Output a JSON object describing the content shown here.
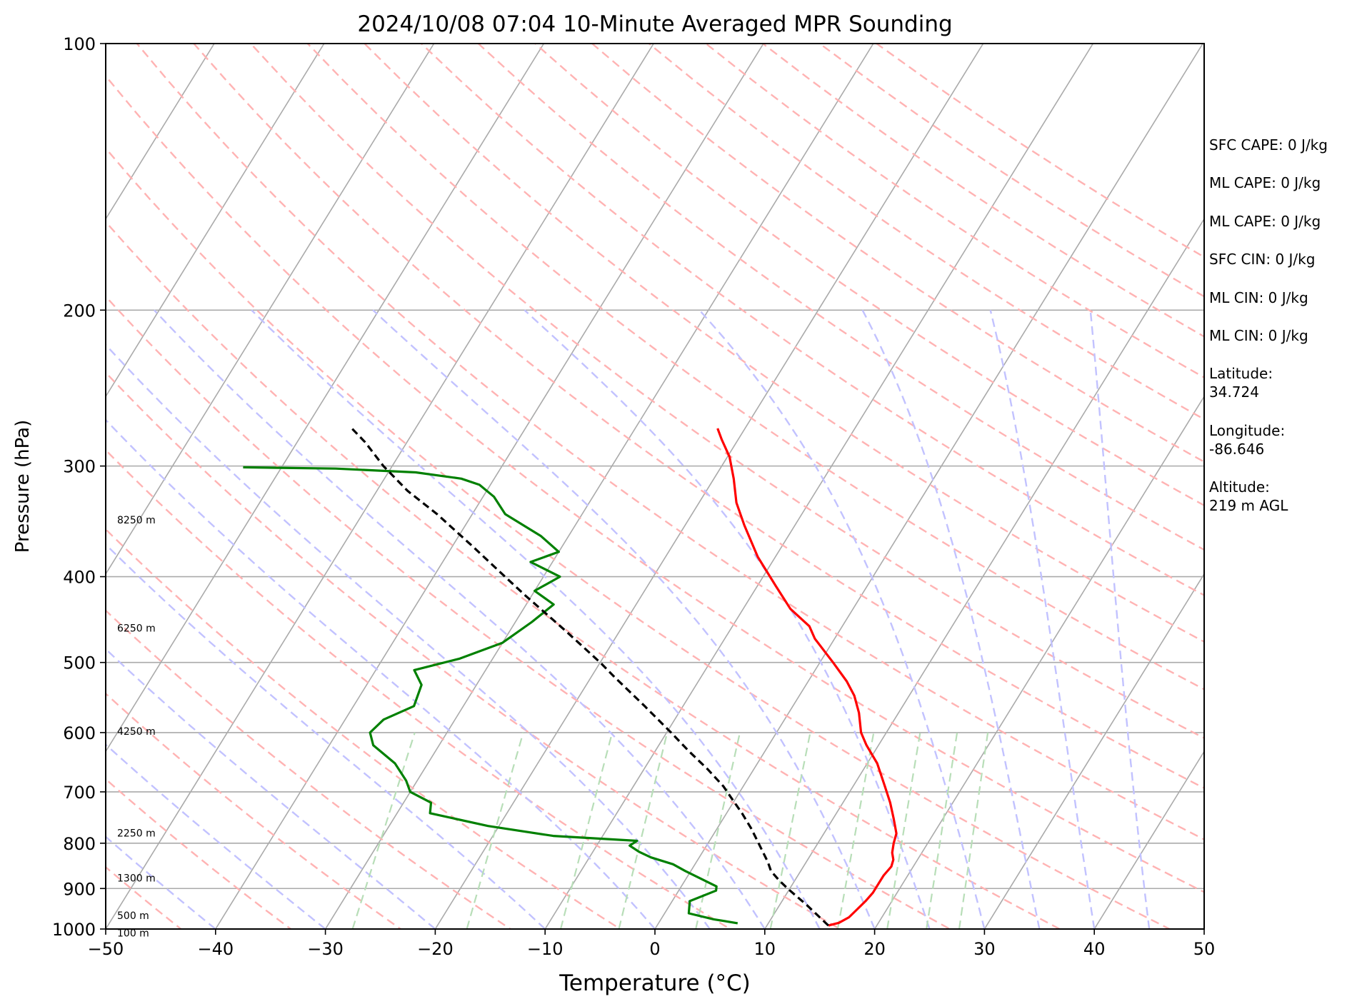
{
  "chart_data": {
    "type": "line",
    "subtype": "skew-t log-p",
    "title": "2024/10/08 07:04 10-Minute Averaged MPR Sounding",
    "xlabel": "Temperature (°C)",
    "ylabel": "Pressure (hPa)",
    "xlim": [
      -50,
      50
    ],
    "ylim": [
      1000,
      100
    ],
    "y_scale": "log",
    "x_ticks": [
      -50,
      -40,
      -30,
      -20,
      -10,
      0,
      10,
      20,
      30,
      40,
      50
    ],
    "x_tick_labels": [
      "−50",
      "−40",
      "−30",
      "−20",
      "−10",
      "0",
      "10",
      "20",
      "30",
      "40",
      "50"
    ],
    "y_ticks": [
      1000,
      900,
      800,
      700,
      600,
      500,
      400,
      300,
      200,
      100
    ],
    "y_tick_labels": [
      "1000",
      "900",
      "800",
      "700",
      "600",
      "500",
      "400",
      "300",
      "200",
      "100"
    ],
    "grid": true,
    "skew_isotherms_c": [
      -120,
      -110,
      -100,
      -90,
      -80,
      -70,
      -60,
      -50,
      -40,
      -30,
      -20,
      -10,
      0,
      10,
      20,
      30,
      40,
      50
    ],
    "dry_adiabats_theta_k": [
      210,
      220,
      230,
      240,
      250,
      260,
      270,
      280,
      290,
      300,
      310,
      320,
      330,
      340,
      350,
      360,
      370,
      380,
      390,
      400,
      410,
      420,
      430,
      440,
      450,
      460,
      470
    ],
    "moist_adiabats_start_c": [
      -40,
      -30,
      -20,
      -10,
      0,
      5,
      10,
      15,
      20,
      25,
      30,
      35,
      40,
      45
    ],
    "mixing_ratio_lines_gkg": [
      0.4,
      1,
      2,
      3,
      5,
      8,
      12,
      16,
      20,
      24
    ],
    "colors": {
      "temperature": "#ff0000",
      "dewpoint": "#008000",
      "parcel": "#000000",
      "isotherm": "#aaaaaa",
      "isobar": "#aaaaaa",
      "dry_adiabat": "#ffb3b3",
      "moist_adiabat": "#c2c2ff",
      "mixing_ratio": "#b8deb8"
    },
    "series": [
      {
        "role": "temperature",
        "points": [
          [
            991,
            15.6
          ],
          [
            984,
            16.4
          ],
          [
            970,
            17.0
          ],
          [
            950,
            17.3
          ],
          [
            930,
            17.6
          ],
          [
            910,
            17.8
          ],
          [
            890,
            17.8
          ],
          [
            870,
            17.8
          ],
          [
            850,
            18.0
          ],
          [
            835,
            17.8
          ],
          [
            820,
            17.3
          ],
          [
            800,
            16.9
          ],
          [
            780,
            16.6
          ],
          [
            750,
            15.5
          ],
          [
            720,
            14.3
          ],
          [
            690,
            12.9
          ],
          [
            650,
            10.9
          ],
          [
            620,
            8.9
          ],
          [
            600,
            7.7
          ],
          [
            570,
            6.4
          ],
          [
            545,
            5.0
          ],
          [
            525,
            3.5
          ],
          [
            500,
            1.2
          ],
          [
            470,
            -1.8
          ],
          [
            455,
            -3.0
          ],
          [
            435,
            -5.7
          ],
          [
            410,
            -8.3
          ],
          [
            380,
            -11.6
          ],
          [
            350,
            -14.6
          ],
          [
            330,
            -16.6
          ],
          [
            310,
            -18.2
          ],
          [
            293,
            -19.8
          ],
          [
            280,
            -21.5
          ],
          [
            272,
            -22.5
          ]
        ]
      },
      {
        "role": "dewpoint",
        "points": [
          [
            985,
            7.2
          ],
          [
            975,
            4.8
          ],
          [
            960,
            2.2
          ],
          [
            945,
            1.9
          ],
          [
            930,
            1.6
          ],
          [
            905,
            3.4
          ],
          [
            895,
            3.2
          ],
          [
            860,
            -0.5
          ],
          [
            845,
            -2.0
          ],
          [
            830,
            -4.4
          ],
          [
            818,
            -5.8
          ],
          [
            805,
            -7.0
          ],
          [
            795,
            -6.6
          ],
          [
            785,
            -14.5
          ],
          [
            765,
            -21.0
          ],
          [
            740,
            -27.0
          ],
          [
            720,
            -27.5
          ],
          [
            700,
            -30.0
          ],
          [
            680,
            -31.0
          ],
          [
            650,
            -33.0
          ],
          [
            620,
            -36.0
          ],
          [
            600,
            -37.0
          ],
          [
            580,
            -36.5
          ],
          [
            560,
            -34.5
          ],
          [
            530,
            -35.0
          ],
          [
            510,
            -36.5
          ],
          [
            495,
            -33.0
          ],
          [
            475,
            -30.0
          ],
          [
            450,
            -28.5
          ],
          [
            430,
            -27.5
          ],
          [
            415,
            -30.0
          ],
          [
            400,
            -28.5
          ],
          [
            385,
            -32.0
          ],
          [
            375,
            -30.0
          ],
          [
            360,
            -32.5
          ],
          [
            340,
            -37.0
          ],
          [
            325,
            -39.0
          ],
          [
            315,
            -41.0
          ],
          [
            310,
            -43.0
          ],
          [
            305,
            -47.5
          ],
          [
            302,
            -55.0
          ],
          [
            301,
            -63.5
          ]
        ]
      },
      {
        "role": "parcel",
        "dashed": true,
        "points": [
          [
            991,
            15.6
          ],
          [
            940,
            12.5
          ],
          [
            900,
            9.8
          ],
          [
            880,
            8.5
          ],
          [
            860,
            7.3
          ],
          [
            840,
            6.5
          ],
          [
            800,
            4.6
          ],
          [
            770,
            3.1
          ],
          [
            740,
            1.4
          ],
          [
            710,
            -0.5
          ],
          [
            690,
            -1.8
          ],
          [
            660,
            -4.2
          ],
          [
            630,
            -6.9
          ],
          [
            600,
            -9.6
          ],
          [
            560,
            -13.5
          ],
          [
            520,
            -17.8
          ],
          [
            500,
            -20.0
          ],
          [
            460,
            -25.0
          ],
          [
            420,
            -30.6
          ],
          [
            400,
            -33.5
          ],
          [
            370,
            -38.1
          ],
          [
            340,
            -43.2
          ],
          [
            320,
            -47.2
          ],
          [
            300,
            -50.8
          ],
          [
            282,
            -53.8
          ],
          [
            272,
            -55.8
          ]
        ]
      }
    ],
    "height_labels": [
      {
        "text": "8250 m",
        "pressure_hpa": 345
      },
      {
        "text": "6250 m",
        "pressure_hpa": 457
      },
      {
        "text": "4250 m",
        "pressure_hpa": 598
      },
      {
        "text": "2250 m",
        "pressure_hpa": 779
      },
      {
        "text": "1300 m",
        "pressure_hpa": 876
      },
      {
        "text": "500 m",
        "pressure_hpa": 965
      },
      {
        "text": "100 m",
        "pressure_hpa": 1010
      }
    ]
  },
  "annotations": [
    "SFC CAPE: 0 J/kg",
    "ML CAPE: 0 J/kg",
    "ML CAPE: 0 J/kg",
    "SFC CIN: 0 J/kg",
    "ML CIN: 0 J/kg",
    "ML CIN: 0 J/kg",
    "Latitude:\n34.724",
    "Longitude:\n-86.646",
    "Altitude:\n219 m AGL"
  ]
}
